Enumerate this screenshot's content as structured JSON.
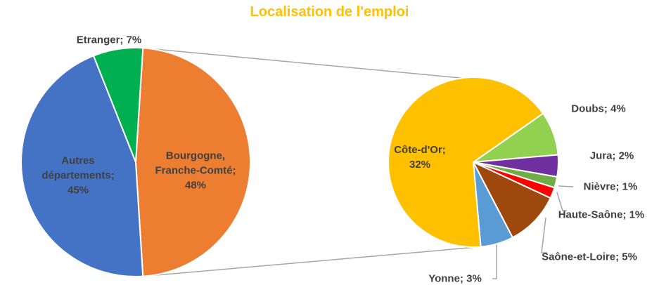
{
  "chart_data": [
    {
      "type": "pie",
      "title": "Localisation de l'emploi",
      "label_separator": "; ",
      "categories": [
        "Bourgogne, Franche-Comté",
        "Autres départements",
        "Etranger"
      ],
      "values": [
        48,
        45,
        7
      ],
      "value_labels": [
        "48%",
        "45%",
        "7%"
      ],
      "colors": [
        "#ED7D31",
        "#4472C4",
        "#00B050"
      ]
    },
    {
      "type": "pie",
      "label_separator": "; ",
      "categories": [
        "Doubs",
        "Jura",
        "Nièvre",
        "Haute-Saône",
        "Saône-et-Loire",
        "Yonne",
        "Côte-d'Or"
      ],
      "values": [
        4,
        2,
        1,
        1,
        5,
        3,
        32
      ],
      "value_labels": [
        "4%",
        "2%",
        "1%",
        "1%",
        "5%",
        "3%",
        "32%"
      ],
      "colors": [
        "#92D050",
        "#7030A0",
        "#70AD47",
        "#FF0000",
        "#9E480E",
        "#5B9BD5",
        "#FFC000"
      ]
    }
  ]
}
